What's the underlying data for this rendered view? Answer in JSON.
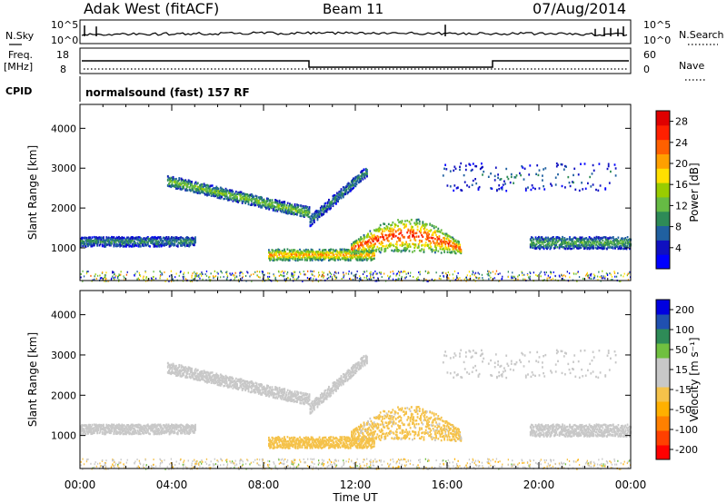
{
  "header": {
    "site": "Adak West (fitACF)",
    "beam": "Beam 11",
    "date": "07/Aug/2014"
  },
  "top_panels": {
    "nsky_label": "N.Sky",
    "nsearch_label": "N.Search",
    "noise_ticks_left": [
      "10^5",
      "10^0"
    ],
    "noise_ticks_right": [
      "10^5",
      "10^0"
    ],
    "freq_label": "Freq.",
    "freq_unit": "[MHz]",
    "freq_ticks": [
      "18",
      "8"
    ],
    "nave_label": "Nave",
    "nave_ticks": [
      "60",
      "0"
    ],
    "cpid_label": "CPID",
    "cpid_text": "normalsound (fast) 157 RF"
  },
  "chart_data": [
    {
      "type": "heatmap",
      "title": "",
      "xlabel": "",
      "ylabel": "Slant Range [km]",
      "xlim_hours": [
        0,
        24
      ],
      "ylim": [
        180,
        4600
      ],
      "yticks": [
        "4000",
        "3000",
        "2000",
        "1000"
      ],
      "colorbar": {
        "label": "Power [dB]",
        "ticks": [
          "28",
          "24",
          "20",
          "16",
          "12",
          "8",
          "4"
        ],
        "range": [
          0,
          30
        ],
        "colors": [
          "#0000ff",
          "#1010c0",
          "#2060a0",
          "#2e8b57",
          "#66bb44",
          "#99cc00",
          "#ffe000",
          "#ffa000",
          "#ff6000",
          "#ff2000",
          "#e00000"
        ]
      },
      "echo_regions": [
        {
          "name": "early band",
          "t_start": 0.0,
          "t_end": 5.0,
          "range_center": 1180,
          "range_width": 240,
          "peak_db": 10
        },
        {
          "name": "upper arc",
          "t_start": 3.8,
          "t_end": 10.0,
          "range_start": 2700,
          "range_end": 1900,
          "range_width": 280,
          "peak_db": 14
        },
        {
          "name": "rising arc",
          "t_start": 10.0,
          "t_end": 12.5,
          "range_start": 1700,
          "range_end": 2950,
          "range_width": 260,
          "peak_db": 10
        },
        {
          "name": "low band",
          "t_start": 8.2,
          "t_end": 12.8,
          "range_center": 850,
          "range_width": 280,
          "peak_db": 22
        },
        {
          "name": "central bump",
          "t_start": 11.8,
          "t_end": 16.6,
          "range_center": 1250,
          "range_width": 700,
          "peak_db": 26
        },
        {
          "name": "late band",
          "t_start": 19.6,
          "t_end": 24.0,
          "range_center": 1150,
          "range_width": 300,
          "peak_db": 12
        },
        {
          "name": "high scatter",
          "t_start": 15.8,
          "t_end": 23.4,
          "range_center": 2800,
          "range_width": 700,
          "peak_db": 8
        }
      ]
    },
    {
      "type": "heatmap",
      "title": "",
      "xlabel": "Time UT",
      "ylabel": "Slant Range [km]",
      "xlim_hours": [
        0,
        24
      ],
      "xticks": [
        "00:00",
        "04:00",
        "08:00",
        "12:00",
        "16:00",
        "20:00",
        "00:00"
      ],
      "ylim": [
        180,
        4600
      ],
      "yticks": [
        "4000",
        "3000",
        "2000",
        "1000"
      ],
      "colorbar": {
        "label": "Velocity [m s⁻¹]",
        "ticks": [
          "200",
          "100",
          "50",
          "15",
          "-15",
          "-50",
          "-100",
          "-200"
        ],
        "range": [
          -250,
          250
        ],
        "colors": [
          "#ff0000",
          "#ff4000",
          "#ff8000",
          "#ffb000",
          "#f5c24a",
          "#c8c8c8",
          "#c8c8c8",
          "#70c040",
          "#2e8b57",
          "#2050b0",
          "#0000e0"
        ]
      },
      "velocity_regions": [
        {
          "name": "early band",
          "velocity": 0
        },
        {
          "name": "upper arc",
          "velocity": 0
        },
        {
          "name": "rising arc",
          "velocity": 0
        },
        {
          "name": "low band",
          "velocity": -40
        },
        {
          "name": "central bump",
          "velocity": -35
        },
        {
          "name": "late band",
          "velocity": 0
        },
        {
          "name": "high scatter",
          "velocity": 30
        }
      ]
    }
  ]
}
